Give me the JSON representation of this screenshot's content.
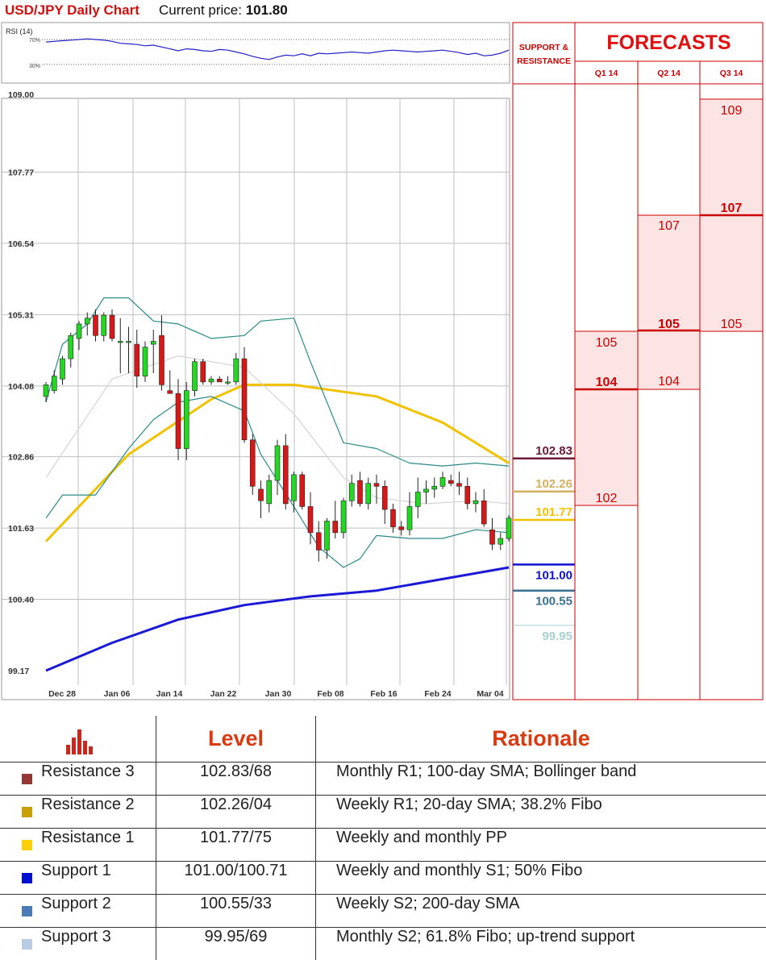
{
  "header": {
    "title": "USD/JPY Daily Chart",
    "price_label": "Current price:",
    "price_value": "101.80"
  },
  "rsi": {
    "label": "RSI (14)",
    "levels": [
      "70%",
      "30%"
    ],
    "values": [
      66,
      67,
      68,
      69,
      70,
      71,
      70,
      69,
      67,
      64,
      63,
      62,
      60,
      61,
      58,
      55,
      52,
      55,
      54,
      52,
      51,
      54,
      53,
      50,
      47,
      43,
      40,
      38,
      42,
      45,
      44,
      47,
      44,
      48,
      47,
      48,
      49,
      50,
      49,
      48,
      50,
      52,
      53,
      52,
      51,
      50,
      51,
      52,
      53,
      51,
      49,
      46,
      48,
      44,
      45,
      48,
      53
    ]
  },
  "sr_header": [
    "SUPPORT &",
    "RESISTANCE"
  ],
  "forecasts": {
    "title": "FORECASTS",
    "quarters": [
      {
        "label": "Q1 14",
        "values": [
          "105",
          "104",
          "102"
        ],
        "bold": "104"
      },
      {
        "label": "Q2 14",
        "values": [
          "107",
          "105",
          "104"
        ],
        "bold": "105"
      },
      {
        "label": "Q3 14",
        "values": [
          "109",
          "107",
          "105"
        ],
        "bold": "107"
      }
    ]
  },
  "levels": [
    {
      "text": "102.83",
      "price": 102.83,
      "color": "#6b1a3a"
    },
    {
      "text": "102.26",
      "price": 102.26,
      "color": "#d4b060"
    },
    {
      "text": "101.77",
      "price": 101.77,
      "color": "#f2c200"
    },
    {
      "text": "101.00",
      "price": 101.0,
      "color": "#1010d0"
    },
    {
      "text": "100.55",
      "price": 100.55,
      "color": "#3a7090"
    },
    {
      "text": "99.95",
      "price": 99.95,
      "color": "#a8d0d0"
    }
  ],
  "chart_data": {
    "type": "candlestick",
    "title": "USD/JPY Daily Chart",
    "ylim": [
      99.17,
      109.0
    ],
    "y_ticks": [
      "109.00",
      "107.77",
      "106.54",
      "105.31",
      "104.08",
      "102.86",
      "101.63",
      "100.40",
      "99.17"
    ],
    "x_ticks": [
      "Dec 28",
      "Jan 06",
      "Jan 14",
      "Jan 22",
      "Jan 30",
      "Feb 08",
      "Feb 16",
      "Feb 24",
      "Mar 04"
    ],
    "grid": true,
    "ohlc": [
      [
        103.9,
        104.15,
        103.8,
        104.1
      ],
      [
        104.0,
        104.35,
        103.95,
        104.25
      ],
      [
        104.2,
        104.6,
        104.1,
        104.55
      ],
      [
        104.55,
        105.0,
        104.4,
        104.95
      ],
      [
        104.9,
        105.2,
        104.7,
        105.15
      ],
      [
        105.15,
        105.35,
        104.95,
        105.25
      ],
      [
        105.3,
        105.4,
        104.85,
        104.95
      ],
      [
        104.95,
        105.35,
        104.85,
        105.3
      ],
      [
        105.3,
        105.4,
        104.85,
        104.9
      ],
      [
        104.85,
        105.25,
        104.3,
        104.85
      ],
      [
        104.85,
        105.1,
        104.3,
        104.85
      ],
      [
        104.8,
        105.05,
        104.05,
        104.25
      ],
      [
        104.25,
        104.85,
        104.15,
        104.75
      ],
      [
        104.8,
        105.05,
        104.3,
        104.85
      ],
      [
        104.95,
        105.3,
        104.0,
        104.1
      ],
      [
        104.0,
        104.35,
        103.95,
        103.95
      ],
      [
        103.95,
        104.2,
        102.8,
        103.0
      ],
      [
        103.0,
        104.15,
        102.8,
        104.0
      ],
      [
        104.0,
        104.55,
        103.9,
        104.5
      ],
      [
        104.5,
        104.55,
        104.1,
        104.15
      ],
      [
        104.15,
        104.25,
        104.1,
        104.2
      ],
      [
        104.2,
        104.25,
        104.15,
        104.15
      ],
      [
        104.15,
        104.25,
        104.1,
        104.15
      ],
      [
        104.15,
        104.65,
        104.1,
        104.55
      ],
      [
        104.55,
        104.75,
        103.1,
        103.15
      ],
      [
        103.15,
        103.25,
        102.2,
        102.35
      ],
      [
        102.3,
        102.45,
        101.8,
        102.1
      ],
      [
        102.05,
        102.55,
        101.9,
        102.45
      ],
      [
        102.45,
        103.15,
        102.2,
        103.05
      ],
      [
        103.05,
        103.25,
        101.95,
        102.05
      ],
      [
        102.1,
        102.6,
        101.9,
        102.55
      ],
      [
        102.55,
        102.6,
        101.95,
        102.0
      ],
      [
        102.0,
        102.25,
        101.35,
        101.55
      ],
      [
        101.55,
        101.75,
        101.05,
        101.25
      ],
      [
        101.25,
        101.8,
        101.1,
        101.75
      ],
      [
        101.75,
        102.1,
        101.45,
        101.55
      ],
      [
        101.55,
        102.15,
        101.45,
        102.1
      ],
      [
        102.1,
        102.55,
        102.0,
        102.4
      ],
      [
        102.45,
        102.6,
        102.0,
        102.05
      ],
      [
        102.05,
        102.5,
        101.95,
        102.4
      ],
      [
        102.4,
        102.55,
        102.05,
        102.35
      ],
      [
        102.35,
        102.45,
        101.7,
        101.95
      ],
      [
        101.95,
        102.05,
        101.55,
        101.65
      ],
      [
        101.65,
        101.75,
        101.5,
        101.6
      ],
      [
        101.6,
        102.25,
        101.5,
        102.0
      ],
      [
        102.0,
        102.5,
        101.8,
        102.25
      ],
      [
        102.25,
        102.45,
        102.05,
        102.3
      ],
      [
        102.3,
        102.5,
        102.15,
        102.35
      ],
      [
        102.35,
        102.6,
        102.3,
        102.5
      ],
      [
        102.45,
        102.55,
        102.35,
        102.4
      ],
      [
        102.4,
        102.6,
        102.2,
        102.35
      ],
      [
        102.35,
        102.5,
        101.95,
        102.05
      ],
      [
        102.05,
        102.25,
        101.9,
        102.1
      ],
      [
        102.1,
        102.3,
        101.65,
        101.7
      ],
      [
        101.6,
        101.8,
        101.25,
        101.35
      ],
      [
        101.35,
        101.55,
        101.25,
        101.45
      ],
      [
        101.45,
        101.85,
        101.4,
        101.8
      ]
    ],
    "series": [
      {
        "name": "",
        "color": "#f2c200",
        "x": [
          0,
          10,
          20,
          24,
          30,
          40,
          48,
          56
        ],
        "y": [
          101.4,
          102.9,
          103.85,
          104.1,
          104.1,
          103.9,
          103.45,
          102.75
        ]
      },
      {
        "name": "",
        "color": "#1a1ad6",
        "x": [
          0,
          8,
          16,
          24,
          32,
          40,
          48,
          56
        ],
        "y": [
          99.17,
          99.65,
          100.05,
          100.3,
          100.45,
          100.55,
          100.75,
          100.95
        ]
      },
      {
        "name": "",
        "color": "#2a8a8a",
        "x": [
          0,
          2,
          5,
          7,
          10,
          13,
          16,
          20,
          24,
          26,
          30,
          32,
          36,
          40,
          44,
          48,
          52,
          56
        ],
        "y": [
          103.8,
          104.8,
          105.15,
          105.6,
          105.6,
          105.2,
          105.15,
          104.9,
          104.95,
          105.2,
          105.25,
          104.5,
          103.1,
          103.0,
          102.75,
          102.7,
          102.75,
          102.7
        ]
      },
      {
        "name": "",
        "color": "#2a8a8a",
        "x": [
          0,
          2,
          6,
          10,
          13,
          16,
          20,
          24,
          26,
          30,
          33,
          36,
          38,
          40,
          44,
          48,
          52,
          56
        ],
        "y": [
          101.8,
          102.2,
          102.2,
          103.0,
          103.5,
          103.8,
          103.9,
          103.65,
          102.9,
          102.0,
          101.3,
          100.95,
          101.1,
          101.5,
          101.45,
          101.45,
          101.6,
          101.55
        ]
      },
      {
        "name": "",
        "color": "#d4d4d4",
        "x": [
          0,
          8,
          16,
          24,
          30,
          36,
          40,
          46,
          52,
          56
        ],
        "y": [
          102.5,
          104.2,
          104.6,
          104.4,
          103.6,
          102.5,
          102.15,
          102.05,
          102.1,
          102.05
        ]
      }
    ]
  },
  "legend": {
    "level_header": "Level",
    "rationale_header": "Rationale",
    "rows": [
      {
        "name": "Resistance 3",
        "color": "#953735",
        "level": "102.83/68",
        "rationale": "Monthly R1; 100-day SMA; Bollinger band"
      },
      {
        "name": "Resistance 2",
        "color": "#c8a000",
        "level": "102.26/04",
        "rationale": "Weekly R1; 20-day SMA; 38.2% Fibo"
      },
      {
        "name": "Resistance 1",
        "color": "#ffd000",
        "level": "101.77/75",
        "rationale": "Weekly and monthly PP"
      },
      {
        "name": "Support 1",
        "color": "#0010d0",
        "level": "101.00/100.71",
        "rationale": "Weekly and monthly S1; 50% Fibo"
      },
      {
        "name": "Support 2",
        "color": "#4a7ab8",
        "level": "100.55/33",
        "rationale": "Weekly S2; 200-day SMA"
      },
      {
        "name": "Support 3",
        "color": "#b8cce4",
        "level": "99.95/69",
        "rationale": "Monthly S2; 61.8% Fibo; up-trend support"
      }
    ]
  }
}
